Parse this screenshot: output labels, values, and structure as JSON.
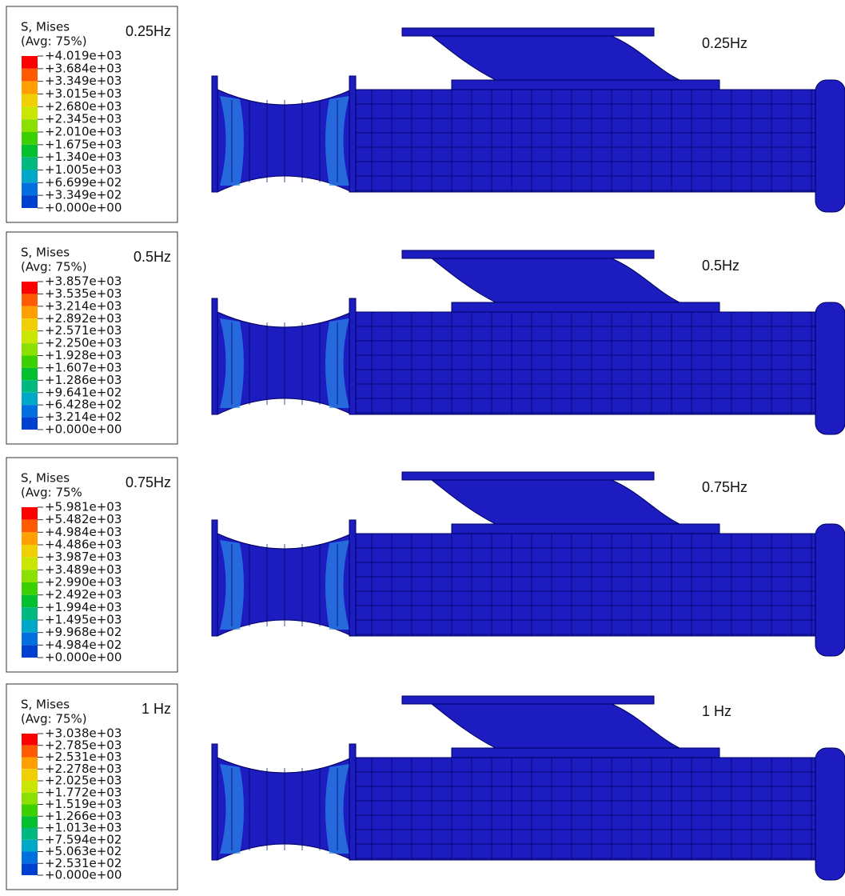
{
  "panels": [
    {
      "legend": {
        "title": "S, Mises",
        "average": "(Avg: 75%)",
        "frequency": "0.25Hz",
        "values": [
          "+4.019e+03",
          "+3.684e+03",
          "+3.349e+03",
          "+3.015e+03",
          "+2.680e+03",
          "+2.345e+03",
          "+2.010e+03",
          "+1.675e+03",
          "+1.340e+03",
          "+1.005e+03",
          "+6.699e+02",
          "+3.349e+02",
          "+0.000e+00"
        ]
      },
      "frequency_label": "0.25Hz"
    },
    {
      "legend": {
        "title": "S, Mises",
        "average": "(Avg: 75%)",
        "frequency": "0.5Hz",
        "values": [
          "+3.857e+03",
          "+3.535e+03",
          "+3.214e+03",
          "+2.892e+03",
          "+2.571e+03",
          "+2.250e+03",
          "+1.928e+03",
          "+1.607e+03",
          "+1.286e+03",
          "+9.641e+02",
          "+6.428e+02",
          "+3.214e+02",
          "+0.000e+00"
        ]
      },
      "frequency_label": "0.5Hz"
    },
    {
      "legend": {
        "title": "S, Mises",
        "average": "(Avg: 75%",
        "frequency": "0.75Hz",
        "values": [
          "+5.981e+03",
          "+5.482e+03",
          "+4.984e+03",
          "+4.486e+03",
          "+3.987e+03",
          "+3.489e+03",
          "+2.990e+03",
          "+2.492e+03",
          "+1.994e+03",
          "+1.495e+03",
          "+9.968e+02",
          "+4.984e+02",
          "+0.000e+00"
        ]
      },
      "frequency_label": "0.75Hz"
    },
    {
      "legend": {
        "title": "S, Mises",
        "average": "(Avg: 75%)",
        "frequency": "1 Hz",
        "values": [
          "+3.038e+03",
          "+2.785e+03",
          "+2.531e+03",
          "+2.278e+03",
          "+2.025e+03",
          "+1.772e+03",
          "+1.519e+03",
          "+1.266e+03",
          "+1.013e+03",
          "+7.594e+02",
          "+5.063e+02",
          "+2.531e+02",
          "+0.000e+00"
        ]
      },
      "frequency_label": "1 Hz"
    }
  ]
}
